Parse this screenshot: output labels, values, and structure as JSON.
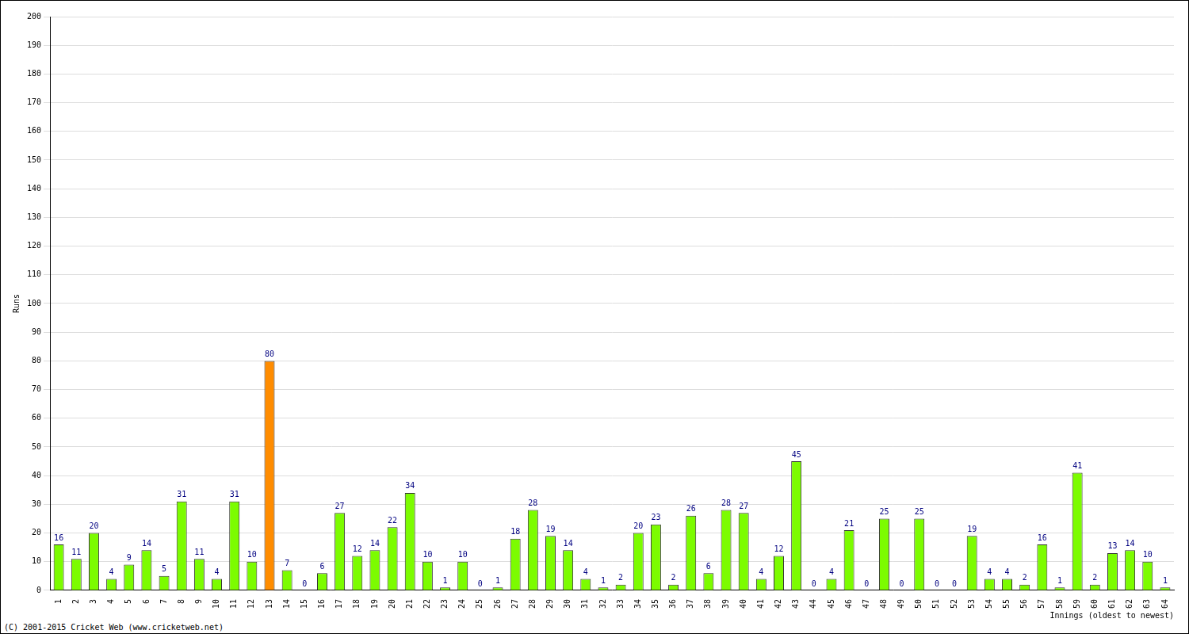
{
  "chart_data": {
    "type": "bar",
    "y_label": "Runs",
    "x_label": "Innings (oldest to newest)",
    "annotations": [
      "(C) 2001-2015 Cricket Web (www.cricketweb.net)"
    ],
    "categories": [
      "1",
      "2",
      "3",
      "4",
      "5",
      "6",
      "7",
      "8",
      "9",
      "10",
      "11",
      "12",
      "13",
      "14",
      "15",
      "16",
      "17",
      "18",
      "19",
      "20",
      "21",
      "22",
      "23",
      "24",
      "25",
      "26",
      "27",
      "28",
      "29",
      "30",
      "31",
      "32",
      "33",
      "34",
      "35",
      "36",
      "37",
      "38",
      "39",
      "40",
      "41",
      "42",
      "43",
      "44",
      "45",
      "46",
      "47",
      "48",
      "49",
      "50",
      "51",
      "52",
      "53",
      "54",
      "55",
      "56",
      "57",
      "58",
      "59",
      "60",
      "61",
      "62",
      "63",
      "64"
    ],
    "values": [
      16,
      11,
      20,
      4,
      9,
      14,
      5,
      31,
      11,
      4,
      31,
      10,
      80,
      7,
      0,
      6,
      27,
      12,
      14,
      22,
      34,
      10,
      1,
      10,
      0,
      1,
      18,
      28,
      19,
      14,
      4,
      1,
      2,
      20,
      23,
      2,
      26,
      6,
      28,
      27,
      4,
      12,
      45,
      0,
      4,
      21,
      0,
      25,
      0,
      25,
      0,
      0,
      19,
      4,
      4,
      2,
      16,
      1,
      41,
      2,
      13,
      14,
      10,
      1
    ],
    "colors": [
      "#7cfc00",
      "#7cfc00",
      "#7cfc00",
      "#7cfc00",
      "#7cfc00",
      "#7cfc00",
      "#7cfc00",
      "#7cfc00",
      "#7cfc00",
      "#7cfc00",
      "#7cfc00",
      "#7cfc00",
      "#ff8c00",
      "#7cfc00",
      "#7cfc00",
      "#7cfc00",
      "#7cfc00",
      "#7cfc00",
      "#7cfc00",
      "#7cfc00",
      "#7cfc00",
      "#7cfc00",
      "#7cfc00",
      "#7cfc00",
      "#7cfc00",
      "#7cfc00",
      "#7cfc00",
      "#7cfc00",
      "#7cfc00",
      "#7cfc00",
      "#7cfc00",
      "#7cfc00",
      "#7cfc00",
      "#7cfc00",
      "#7cfc00",
      "#7cfc00",
      "#7cfc00",
      "#7cfc00",
      "#7cfc00",
      "#7cfc00",
      "#7cfc00",
      "#7cfc00",
      "#7cfc00",
      "#7cfc00",
      "#7cfc00",
      "#7cfc00",
      "#7cfc00",
      "#7cfc00",
      "#7cfc00",
      "#7cfc00",
      "#7cfc00",
      "#7cfc00",
      "#7cfc00",
      "#7cfc00",
      "#7cfc00",
      "#7cfc00",
      "#7cfc00",
      "#7cfc00",
      "#7cfc00",
      "#7cfc00",
      "#7cfc00",
      "#7cfc00",
      "#7cfc00",
      "#7cfc00"
    ],
    "ylim": [
      0,
      200
    ],
    "yticks": [
      0,
      10,
      20,
      30,
      40,
      50,
      60,
      70,
      80,
      90,
      100,
      110,
      120,
      130,
      140,
      150,
      160,
      170,
      180,
      190,
      200
    ],
    "grid": true,
    "data_labels": true
  }
}
